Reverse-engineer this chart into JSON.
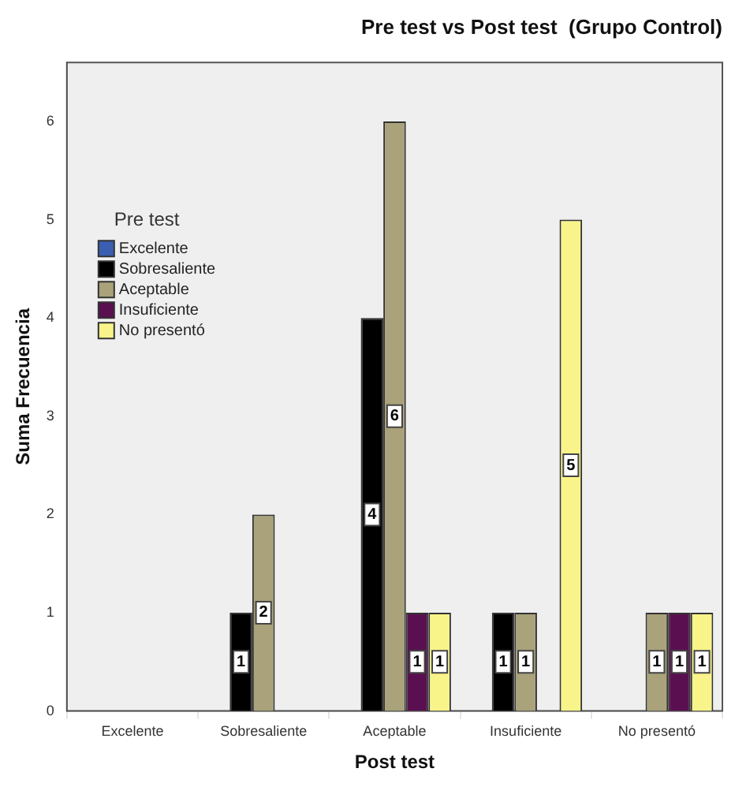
{
  "chart_data": {
    "type": "bar",
    "title": "Pre test vs Post test  (Grupo Control)",
    "xlabel": "Post test",
    "ylabel": "Suma Frecuencia",
    "legend_title": "Pre test",
    "categories": [
      "Excelente",
      "Sobresaliente",
      "Aceptable",
      "Insuficiente",
      "No presentó"
    ],
    "series": [
      {
        "name": "Excelente",
        "color": "#3a5fb0",
        "values": [
          null,
          null,
          null,
          null,
          null
        ]
      },
      {
        "name": "Sobresaliente",
        "color": "#000000",
        "values": [
          null,
          1,
          4,
          1,
          null
        ]
      },
      {
        "name": "Aceptable",
        "color": "#a9a27a",
        "values": [
          null,
          2,
          6,
          1,
          1
        ]
      },
      {
        "name": "Insuficiente",
        "color": "#5a1050",
        "values": [
          null,
          null,
          1,
          null,
          1
        ]
      },
      {
        "name": "No presentó",
        "color": "#f8f48a",
        "values": [
          null,
          null,
          1,
          5,
          1
        ]
      }
    ],
    "ylim": [
      0,
      6.6
    ],
    "yticks": [
      0,
      1,
      2,
      3,
      4,
      5,
      6
    ],
    "grid": false,
    "legend": "left",
    "data_labels": true
  }
}
